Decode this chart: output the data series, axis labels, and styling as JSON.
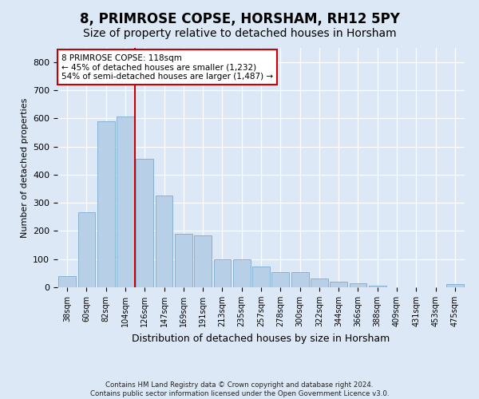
{
  "title": "8, PRIMROSE COPSE, HORSHAM, RH12 5PY",
  "subtitle": "Size of property relative to detached houses in Horsham",
  "xlabel": "Distribution of detached houses by size in Horsham",
  "ylabel": "Number of detached properties",
  "footer_line1": "Contains HM Land Registry data © Crown copyright and database right 2024.",
  "footer_line2": "Contains public sector information licensed under the Open Government Licence v3.0.",
  "categories": [
    "38sqm",
    "60sqm",
    "82sqm",
    "104sqm",
    "126sqm",
    "147sqm",
    "169sqm",
    "191sqm",
    "213sqm",
    "235sqm",
    "257sqm",
    "278sqm",
    "300sqm",
    "322sqm",
    "344sqm",
    "366sqm",
    "388sqm",
    "409sqm",
    "431sqm",
    "453sqm",
    "475sqm"
  ],
  "values": [
    40,
    265,
    590,
    605,
    455,
    325,
    190,
    185,
    100,
    100,
    75,
    55,
    55,
    30,
    20,
    15,
    5,
    0,
    0,
    0,
    10
  ],
  "bar_color": "#b8cfe8",
  "bar_edge_color": "#7aaace",
  "vline_color": "#cc0000",
  "annotation_line1": "8 PRIMROSE COPSE: 118sqm",
  "annotation_line2": "← 45% of detached houses are smaller (1,232)",
  "annotation_line3": "54% of semi-detached houses are larger (1,487) →",
  "annotation_box_edge": "#cc0000",
  "ylim": [
    0,
    850
  ],
  "yticks": [
    0,
    100,
    200,
    300,
    400,
    500,
    600,
    700,
    800
  ],
  "bg_color": "#dce8f5",
  "grid_color": "#ffffff",
  "title_fontsize": 12,
  "subtitle_fontsize": 10
}
